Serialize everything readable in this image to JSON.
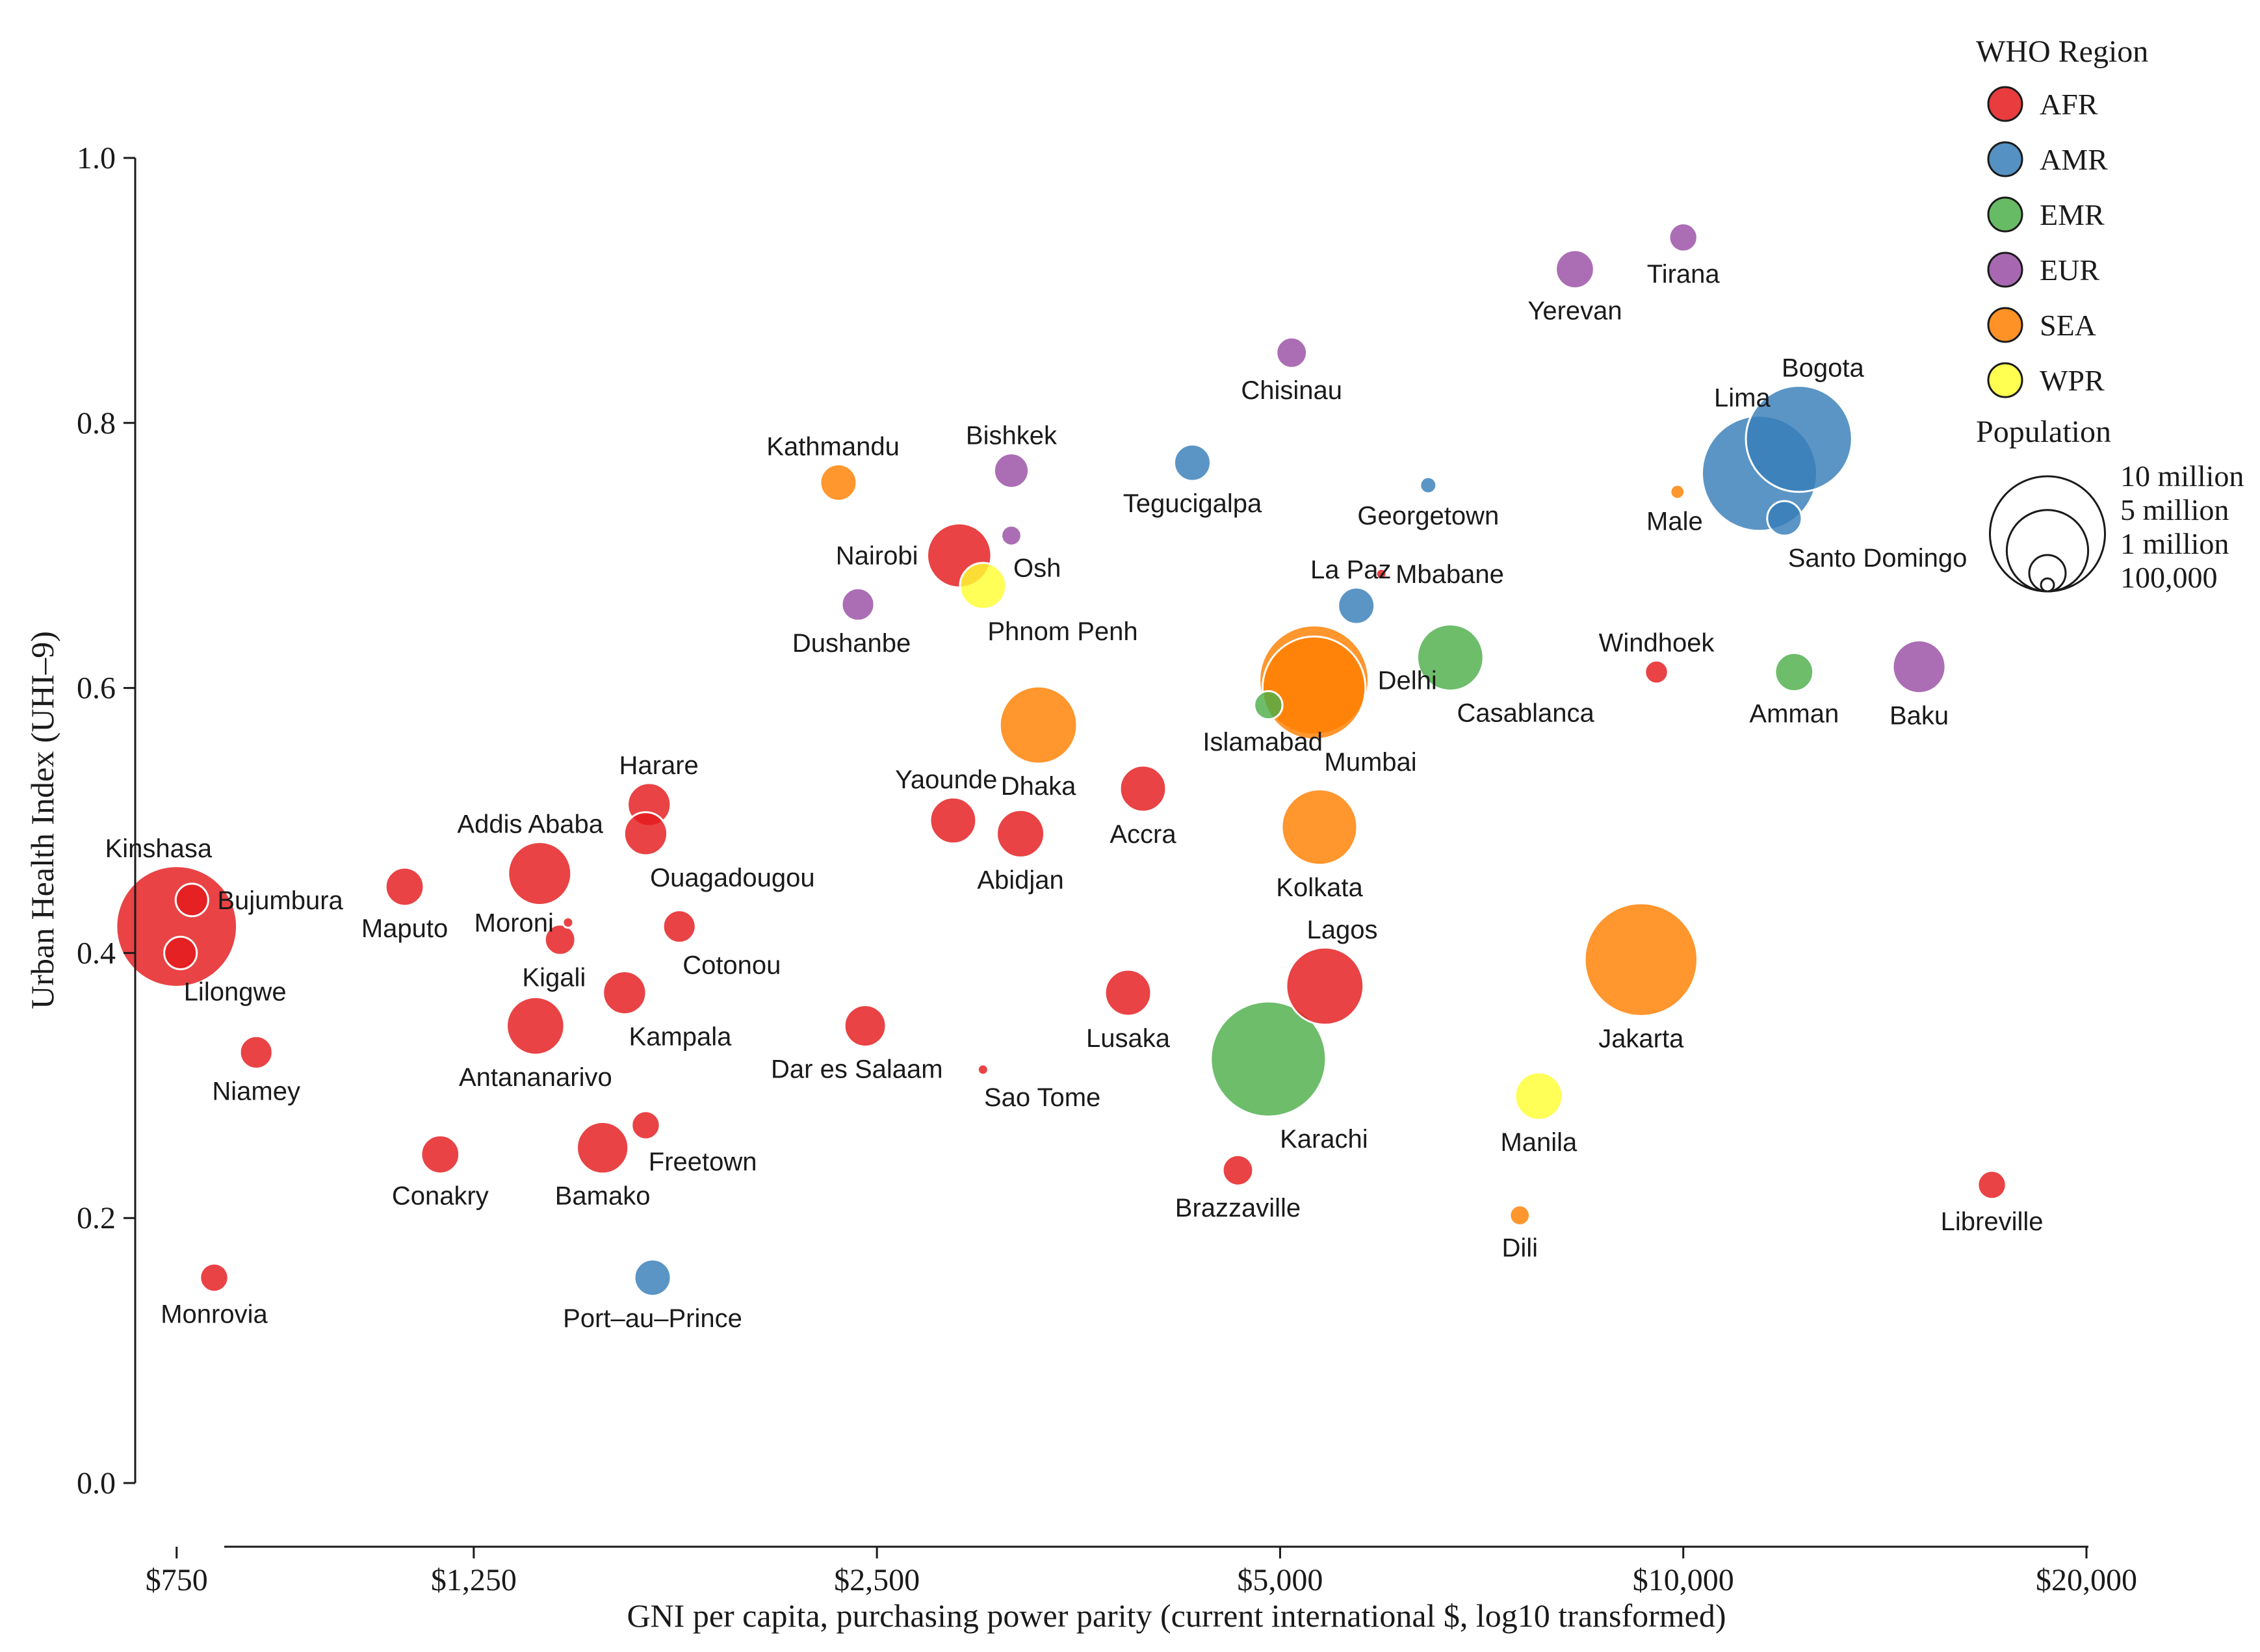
{
  "chart_data": {
    "type": "scatter",
    "subtype": "bubble",
    "xlabel": "GNI per capita, purchasing power parity (current international $, log10 transformed)",
    "ylabel": "Urban Health Index (UHI–9)",
    "x_scale": "log10",
    "xlim": [
      700,
      20000
    ],
    "ylim": [
      0.0,
      1.0
    ],
    "x_ticks": [
      {
        "value": 750,
        "label": "$750"
      },
      {
        "value": 1250,
        "label": "$1,250"
      },
      {
        "value": 2500,
        "label": "$2,500"
      },
      {
        "value": 5000,
        "label": "$5,000"
      },
      {
        "value": 10000,
        "label": "$10,000"
      },
      {
        "value": 20000,
        "label": "$20,000"
      }
    ],
    "y_ticks": [
      {
        "value": 0.0,
        "label": "0.0"
      },
      {
        "value": 0.2,
        "label": "0.2"
      },
      {
        "value": 0.4,
        "label": "0.4"
      },
      {
        "value": 0.6,
        "label": "0.6"
      },
      {
        "value": 0.8,
        "label": "0.8"
      },
      {
        "value": 1.0,
        "label": "1.0"
      }
    ],
    "regions": [
      {
        "code": "AFR",
        "color": "#e41a1c"
      },
      {
        "code": "AMR",
        "color": "#377eb8"
      },
      {
        "code": "EMR",
        "color": "#4daf4a"
      },
      {
        "code": "EUR",
        "color": "#984ea3"
      },
      {
        "code": "SEA",
        "color": "#ff7f00"
      },
      {
        "code": "WPR",
        "color": "#ffff33"
      }
    ],
    "legend": {
      "region_title": "WHO Region",
      "size_title": "Population",
      "size_entries": [
        {
          "label": "10 million",
          "population": 10000000
        },
        {
          "label": "5 million",
          "population": 5000000
        },
        {
          "label": "1 million",
          "population": 1000000
        },
        {
          "label": "100,000",
          "population": 100000
        }
      ],
      "placement": "top-right"
    },
    "points": [
      {
        "city": "Kinshasa",
        "region": "AFR",
        "gni": 750,
        "uhi": 0.42,
        "pop_m": 11.0,
        "label_pos": "above-left"
      },
      {
        "city": "Bujumbura",
        "region": "AFR",
        "gni": 770,
        "uhi": 0.44,
        "pop_m": 0.8,
        "label_pos": "right"
      },
      {
        "city": "Lilongwe",
        "region": "AFR",
        "gni": 755,
        "uhi": 0.4,
        "pop_m": 0.8,
        "label_pos": "below-right"
      },
      {
        "city": "Monrovia",
        "region": "AFR",
        "gni": 800,
        "uhi": 0.155,
        "pop_m": 0.6,
        "label_pos": "below"
      },
      {
        "city": "Niamey",
        "region": "AFR",
        "gni": 860,
        "uhi": 0.325,
        "pop_m": 0.8,
        "label_pos": "below"
      },
      {
        "city": "Maputo",
        "region": "AFR",
        "gni": 1110,
        "uhi": 0.45,
        "pop_m": 1.1,
        "label_pos": "below"
      },
      {
        "city": "Conakry",
        "region": "AFR",
        "gni": 1180,
        "uhi": 0.248,
        "pop_m": 1.1,
        "label_pos": "below"
      },
      {
        "city": "Addis Ababa",
        "region": "AFR",
        "gni": 1400,
        "uhi": 0.46,
        "pop_m": 3.0,
        "label_pos": "above-left"
      },
      {
        "city": "Moroni",
        "region": "AFR",
        "gni": 1470,
        "uhi": 0.423,
        "pop_m": 0.06,
        "label_pos": "left"
      },
      {
        "city": "Kigali",
        "region": "AFR",
        "gni": 1450,
        "uhi": 0.41,
        "pop_m": 0.7,
        "label_pos": "below-left"
      },
      {
        "city": "Antananarivo",
        "region": "AFR",
        "gni": 1390,
        "uhi": 0.345,
        "pop_m": 2.5,
        "label_pos": "below"
      },
      {
        "city": "Bamako",
        "region": "AFR",
        "gni": 1560,
        "uhi": 0.253,
        "pop_m": 2.0,
        "label_pos": "below"
      },
      {
        "city": "Kampala",
        "region": "AFR",
        "gni": 1620,
        "uhi": 0.37,
        "pop_m": 1.4,
        "label_pos": "below-right"
      },
      {
        "city": "Freetown",
        "region": "AFR",
        "gni": 1680,
        "uhi": 0.27,
        "pop_m": 0.6,
        "label_pos": "below-right"
      },
      {
        "city": "Harare",
        "region": "AFR",
        "gni": 1690,
        "uhi": 0.512,
        "pop_m": 1.4,
        "label_pos": "above-right"
      },
      {
        "city": "Ouagadougou",
        "region": "AFR",
        "gni": 1680,
        "uhi": 0.49,
        "pop_m": 1.4,
        "label_pos": "below-right"
      },
      {
        "city": "Cotonou",
        "region": "AFR",
        "gni": 1780,
        "uhi": 0.42,
        "pop_m": 0.8,
        "label_pos": "below-right"
      },
      {
        "city": "Dar es Salaam",
        "region": "AFR",
        "gni": 2450,
        "uhi": 0.345,
        "pop_m": 1.3,
        "label_pos": "below-left"
      },
      {
        "city": "Yaounde",
        "region": "AFR",
        "gni": 2850,
        "uhi": 0.5,
        "pop_m": 1.6,
        "label_pos": "above-left"
      },
      {
        "city": "Abidjan",
        "region": "AFR",
        "gni": 3200,
        "uhi": 0.49,
        "pop_m": 1.7,
        "label_pos": "below"
      },
      {
        "city": "Nairobi",
        "region": "AFR",
        "gni": 2880,
        "uhi": 0.7,
        "pop_m": 3.1,
        "label_pos": "left"
      },
      {
        "city": "Sao Tome",
        "region": "AFR",
        "gni": 3000,
        "uhi": 0.312,
        "pop_m": 0.07,
        "label_pos": "below-right"
      },
      {
        "city": "Accra",
        "region": "AFR",
        "gni": 3950,
        "uhi": 0.524,
        "pop_m": 1.6,
        "label_pos": "below"
      },
      {
        "city": "Lusaka",
        "region": "AFR",
        "gni": 3850,
        "uhi": 0.37,
        "pop_m": 1.6,
        "label_pos": "below"
      },
      {
        "city": "Brazzaville",
        "region": "AFR",
        "gni": 4650,
        "uhi": 0.236,
        "pop_m": 0.7,
        "label_pos": "below"
      },
      {
        "city": "Lagos",
        "region": "AFR",
        "gni": 5400,
        "uhi": 0.375,
        "pop_m": 4.5,
        "label_pos": "above-right"
      },
      {
        "city": "Mbabane",
        "region": "AFR",
        "gni": 5950,
        "uhi": 0.686,
        "pop_m": 0.07,
        "label_pos": "right"
      },
      {
        "city": "Windhoek",
        "region": "AFR",
        "gni": 9550,
        "uhi": 0.612,
        "pop_m": 0.4,
        "label_pos": "above"
      },
      {
        "city": "Libreville",
        "region": "AFR",
        "gni": 17000,
        "uhi": 0.225,
        "pop_m": 0.6,
        "label_pos": "below"
      },
      {
        "city": "Port–au–Prince",
        "region": "AMR",
        "gni": 1700,
        "uhi": 0.155,
        "pop_m": 1.0,
        "label_pos": "below"
      },
      {
        "city": "Tegucigalpa",
        "region": "AMR",
        "gni": 4300,
        "uhi": 0.77,
        "pop_m": 1.0,
        "label_pos": "below"
      },
      {
        "city": "La Paz",
        "region": "AMR",
        "gni": 5700,
        "uhi": 0.662,
        "pop_m": 1.0,
        "label_pos": "above-left"
      },
      {
        "city": "Georgetown",
        "region": "AMR",
        "gni": 6450,
        "uhi": 0.753,
        "pop_m": 0.2,
        "label_pos": "below"
      },
      {
        "city": "Lima",
        "region": "AMR",
        "gni": 11400,
        "uhi": 0.762,
        "pop_m": 10.0,
        "label_pos": "above-left"
      },
      {
        "city": "Bogota",
        "region": "AMR",
        "gni": 12200,
        "uhi": 0.788,
        "pop_m": 8.5,
        "label_pos": "above-right"
      },
      {
        "city": "Santo Domingo",
        "region": "AMR",
        "gni": 11900,
        "uhi": 0.728,
        "pop_m": 0.9,
        "label_pos": "below-right"
      },
      {
        "city": "Islamabad",
        "region": "EMR",
        "gni": 4900,
        "uhi": 0.587,
        "pop_m": 0.6,
        "label_pos": "below-left"
      },
      {
        "city": "Karachi",
        "region": "EMR",
        "gni": 4900,
        "uhi": 0.32,
        "pop_m": 10.0,
        "label_pos": "below-right"
      },
      {
        "city": "Casablanca",
        "region": "EMR",
        "gni": 6700,
        "uhi": 0.623,
        "pop_m": 3.3,
        "label_pos": "below-right"
      },
      {
        "city": "Amman",
        "region": "EMR",
        "gni": 12100,
        "uhi": 0.612,
        "pop_m": 1.1,
        "label_pos": "below"
      },
      {
        "city": "Bishkek",
        "region": "EUR",
        "gni": 3150,
        "uhi": 0.764,
        "pop_m": 0.9,
        "label_pos": "above"
      },
      {
        "city": "Osh",
        "region": "EUR",
        "gni": 3150,
        "uhi": 0.715,
        "pop_m": 0.3,
        "label_pos": "below-right"
      },
      {
        "city": "Dushanbe",
        "region": "EUR",
        "gni": 2420,
        "uhi": 0.663,
        "pop_m": 0.8,
        "label_pos": "below-left"
      },
      {
        "city": "Chisinau",
        "region": "EUR",
        "gni": 5100,
        "uhi": 0.853,
        "pop_m": 0.7,
        "label_pos": "below"
      },
      {
        "city": "Yerevan",
        "region": "EUR",
        "gni": 8300,
        "uhi": 0.916,
        "pop_m": 1.1,
        "label_pos": "below"
      },
      {
        "city": "Tirana",
        "region": "EUR",
        "gni": 10000,
        "uhi": 0.94,
        "pop_m": 0.6,
        "label_pos": "below"
      },
      {
        "city": "Baku",
        "region": "EUR",
        "gni": 15000,
        "uhi": 0.616,
        "pop_m": 2.1,
        "label_pos": "below"
      },
      {
        "city": "Kathmandu",
        "region": "SEA",
        "gni": 2340,
        "uhi": 0.755,
        "pop_m": 1.0,
        "label_pos": "above-left"
      },
      {
        "city": "Dhaka",
        "region": "SEA",
        "gni": 3300,
        "uhi": 0.572,
        "pop_m": 4.5,
        "label_pos": "below"
      },
      {
        "city": "Delhi",
        "region": "SEA",
        "gni": 5300,
        "uhi": 0.606,
        "pop_m": 9.0,
        "label_pos": "right"
      },
      {
        "city": "Mumbai",
        "region": "SEA",
        "gni": 5300,
        "uhi": 0.6,
        "pop_m": 8.0,
        "label_pos": "below-right"
      },
      {
        "city": "Kolkata",
        "region": "SEA",
        "gni": 5350,
        "uhi": 0.495,
        "pop_m": 4.3,
        "label_pos": "below"
      },
      {
        "city": "Jakarta",
        "region": "SEA",
        "gni": 9300,
        "uhi": 0.395,
        "pop_m": 9.6,
        "label_pos": "below"
      },
      {
        "city": "Male",
        "region": "SEA",
        "gni": 9900,
        "uhi": 0.748,
        "pop_m": 0.15,
        "label_pos": "below-left"
      },
      {
        "city": "Dili",
        "region": "SEA",
        "gni": 7550,
        "uhi": 0.202,
        "pop_m": 0.3,
        "label_pos": "below"
      },
      {
        "city": "Phnom Penh",
        "region": "WPR",
        "gni": 3000,
        "uhi": 0.677,
        "pop_m": 1.6,
        "label_pos": "below-right"
      },
      {
        "city": "Manila",
        "region": "WPR",
        "gni": 7800,
        "uhi": 0.292,
        "pop_m": 1.7,
        "label_pos": "below"
      }
    ]
  }
}
